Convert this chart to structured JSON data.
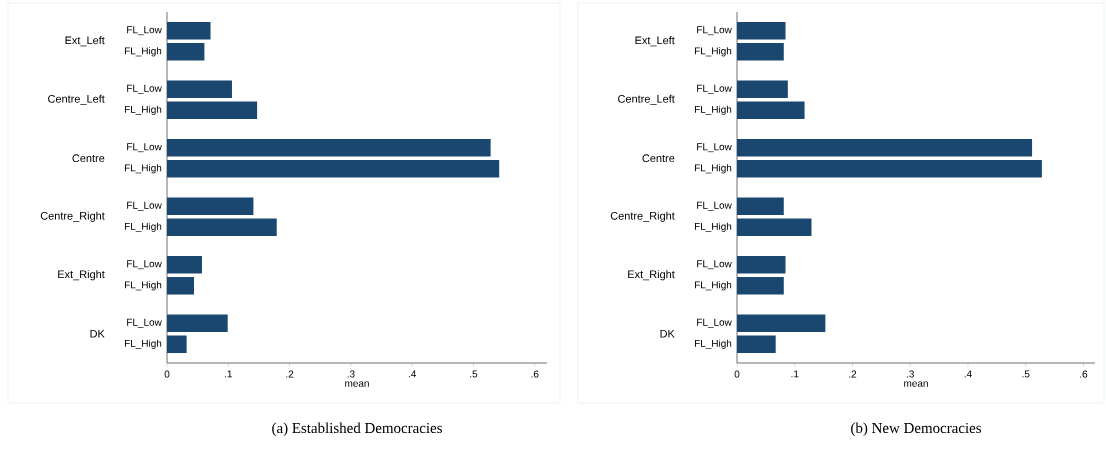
{
  "chart_data": [
    {
      "type": "bar",
      "orientation": "horizontal",
      "title": "(a) Established Democracies",
      "xlabel": "mean",
      "categories": [
        "Ext_Left",
        "Centre_Left",
        "Centre",
        "Centre_Right",
        "Ext_Right",
        "DK"
      ],
      "series": [
        {
          "name": "FL_Low",
          "color": "#1a476f",
          "values": [
            0.071,
            0.106,
            0.528,
            0.141,
            0.057,
            0.099
          ]
        },
        {
          "name": "FL_High",
          "color": "#1a476f",
          "values": [
            0.061,
            0.147,
            0.542,
            0.179,
            0.044,
            0.032
          ]
        }
      ],
      "xlim": [
        0,
        0.62
      ],
      "xticks": [
        0,
        {
          "value": 0.1,
          "label": ".1"
        },
        {
          "value": 0.2,
          "label": ".2"
        },
        {
          "value": 0.3,
          "label": ".3"
        },
        {
          "value": 0.4,
          "label": ".4"
        },
        {
          "value": 0.5,
          "label": ".5"
        },
        {
          "value": 0.6,
          "label": ".6"
        }
      ]
    },
    {
      "type": "bar",
      "orientation": "horizontal",
      "title": "(b) New Democracies",
      "xlabel": "mean",
      "categories": [
        "Ext_Left",
        "Centre_Left",
        "Centre",
        "Centre_Right",
        "Ext_Right",
        "DK"
      ],
      "series": [
        {
          "name": "FL_Low",
          "color": "#1a476f",
          "values": [
            0.084,
            0.088,
            0.511,
            0.081,
            0.084,
            0.153
          ]
        },
        {
          "name": "FL_High",
          "color": "#1a476f",
          "values": [
            0.081,
            0.117,
            0.528,
            0.129,
            0.081,
            0.067
          ]
        }
      ],
      "xlim": [
        0,
        0.62
      ],
      "xticks": [
        0,
        {
          "value": 0.1,
          "label": ".1"
        },
        {
          "value": 0.2,
          "label": ".2"
        },
        {
          "value": 0.3,
          "label": ".3"
        },
        {
          "value": 0.4,
          "label": ".4"
        },
        {
          "value": 0.5,
          "label": ".5"
        },
        {
          "value": 0.6,
          "label": ".6"
        }
      ]
    }
  ]
}
